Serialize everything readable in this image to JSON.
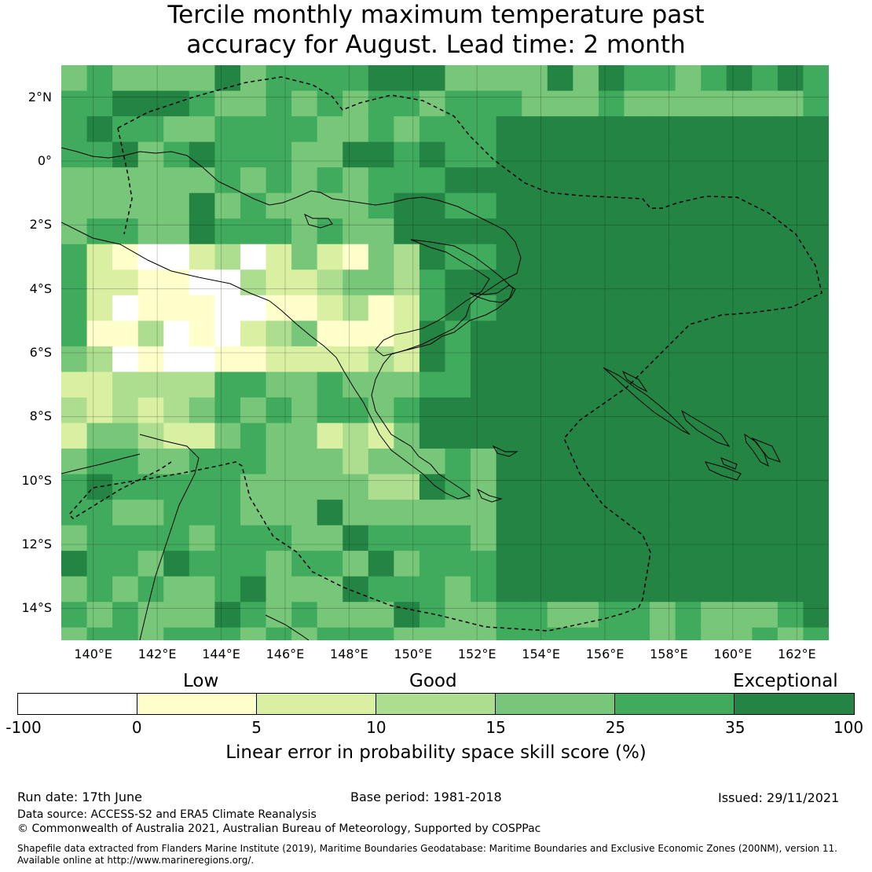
{
  "title": {
    "line1": "Tercile monthly maximum temperature past",
    "line2": "accuracy for August. Lead time: 2 month"
  },
  "map": {
    "lat_labels": [
      "2°N",
      "0°",
      "2°S",
      "4°S",
      "6°S",
      "8°S",
      "10°S",
      "12°S",
      "14°S"
    ],
    "lon_labels": [
      "140°E",
      "142°E",
      "144°E",
      "146°E",
      "148°E",
      "150°E",
      "152°E",
      "154°E",
      "156°E",
      "158°E",
      "160°E",
      "162°E"
    ],
    "extent": {
      "lon_min": 139,
      "lon_max": 163,
      "lat_min": -15,
      "lat_max": 3
    },
    "cell_deg": 0.8
  },
  "legend": {
    "categories": [
      "Low",
      "Good",
      "Exceptional"
    ],
    "ticks": [
      "-100",
      "0",
      "5",
      "10",
      "15",
      "25",
      "35",
      "100"
    ],
    "bins": [
      {
        "from": "-100",
        "to": "0",
        "color": "#ffffff"
      },
      {
        "from": "0",
        "to": "5",
        "color": "#ffffcc"
      },
      {
        "from": "5",
        "to": "10",
        "color": "#d9f0a3"
      },
      {
        "from": "10",
        "to": "15",
        "color": "#addd8e"
      },
      {
        "from": "15",
        "to": "25",
        "color": "#78c679"
      },
      {
        "from": "25",
        "to": "35",
        "color": "#41ab5d"
      },
      {
        "from": "35",
        "to": "100",
        "color": "#238443"
      }
    ],
    "caption": "Linear error in probability space skill score (%)"
  },
  "footer": {
    "run_date": "Run date: 17th June",
    "base_period": "Base period: 1981-2018",
    "issued": "Issued: 29/11/2021",
    "data_source": "Data source: ACCESS-S2 and ERA5 Climate Reanalysis",
    "copyright": "© Commonwealth of Australia 2021, Australian Bureau of Meteorology, Supported by COSPPac",
    "shapefile_line1": "Shapefile data extracted from Flanders Marine Institute (2019), Maritime Boundaries Geodatabase: Maritime Boundaries and Exclusive Economic Zones (200NM), version 11.",
    "shapefile_line2": "Available online at http://www.marineregions.org/."
  }
}
